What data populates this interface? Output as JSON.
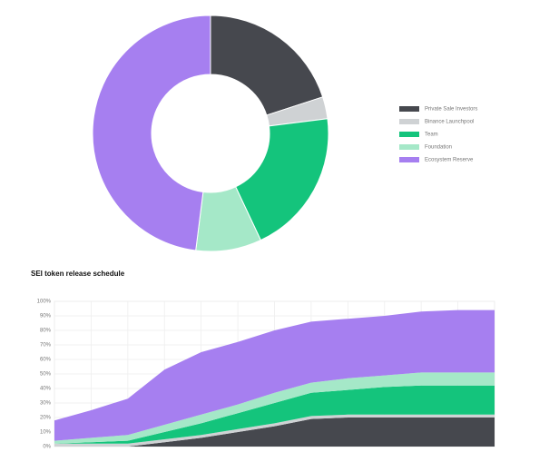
{
  "chart_data": [
    {
      "type": "pie",
      "categories": [
        "Private Sale Investors",
        "Binance Launchpool",
        "Team",
        "Foundation",
        "Ecosystem Reserve"
      ],
      "values": [
        20,
        3,
        20,
        9,
        48
      ],
      "colors": [
        "#46484e",
        "#cfd2d4",
        "#14c47c",
        "#a5e8c8",
        "#a67ff0"
      ]
    },
    {
      "type": "area",
      "title": "SEI token release schedule",
      "categories": [
        null,
        null,
        null,
        null,
        null,
        null,
        null,
        null,
        null,
        null,
        null,
        null,
        null
      ],
      "series": [
        {
          "color": "#46484e",
          "values": [
            0,
            0,
            0,
            3,
            6,
            10,
            14,
            19,
            20,
            20,
            20,
            20,
            20
          ]
        },
        {
          "color": "#cfd2d4",
          "values": [
            2,
            2,
            2,
            2,
            2,
            2,
            2,
            2,
            2,
            2,
            2,
            2,
            2
          ]
        },
        {
          "color": "#14c47c",
          "values": [
            0,
            1,
            2,
            5,
            8,
            11,
            14,
            16,
            17,
            19,
            20,
            20,
            20
          ]
        },
        {
          "color": "#a5e8c8",
          "values": [
            2,
            3,
            4,
            5,
            6,
            6,
            7,
            7,
            8,
            8,
            9,
            9,
            9
          ]
        },
        {
          "color": "#a67ff0",
          "values": [
            14,
            19,
            25,
            38,
            43,
            43,
            43,
            42,
            41,
            41,
            42,
            43,
            43
          ]
        }
      ],
      "ylim": [
        0,
        100
      ],
      "yticks": [
        {
          "value": 0,
          "label": "0%"
        },
        {
          "value": 10,
          "label": "10%"
        },
        {
          "value": 20,
          "label": "20%"
        },
        {
          "value": 30,
          "label": "30%"
        },
        {
          "value": 40,
          "label": "40%"
        },
        {
          "value": 50,
          "label": "50%"
        },
        {
          "value": 60,
          "label": "60%"
        },
        {
          "value": 70,
          "label": "70%"
        },
        {
          "value": 80,
          "label": "80%"
        },
        {
          "value": 90,
          "label": "90%"
        },
        {
          "value": 100,
          "label": "100%"
        }
      ],
      "grid": true
    }
  ]
}
